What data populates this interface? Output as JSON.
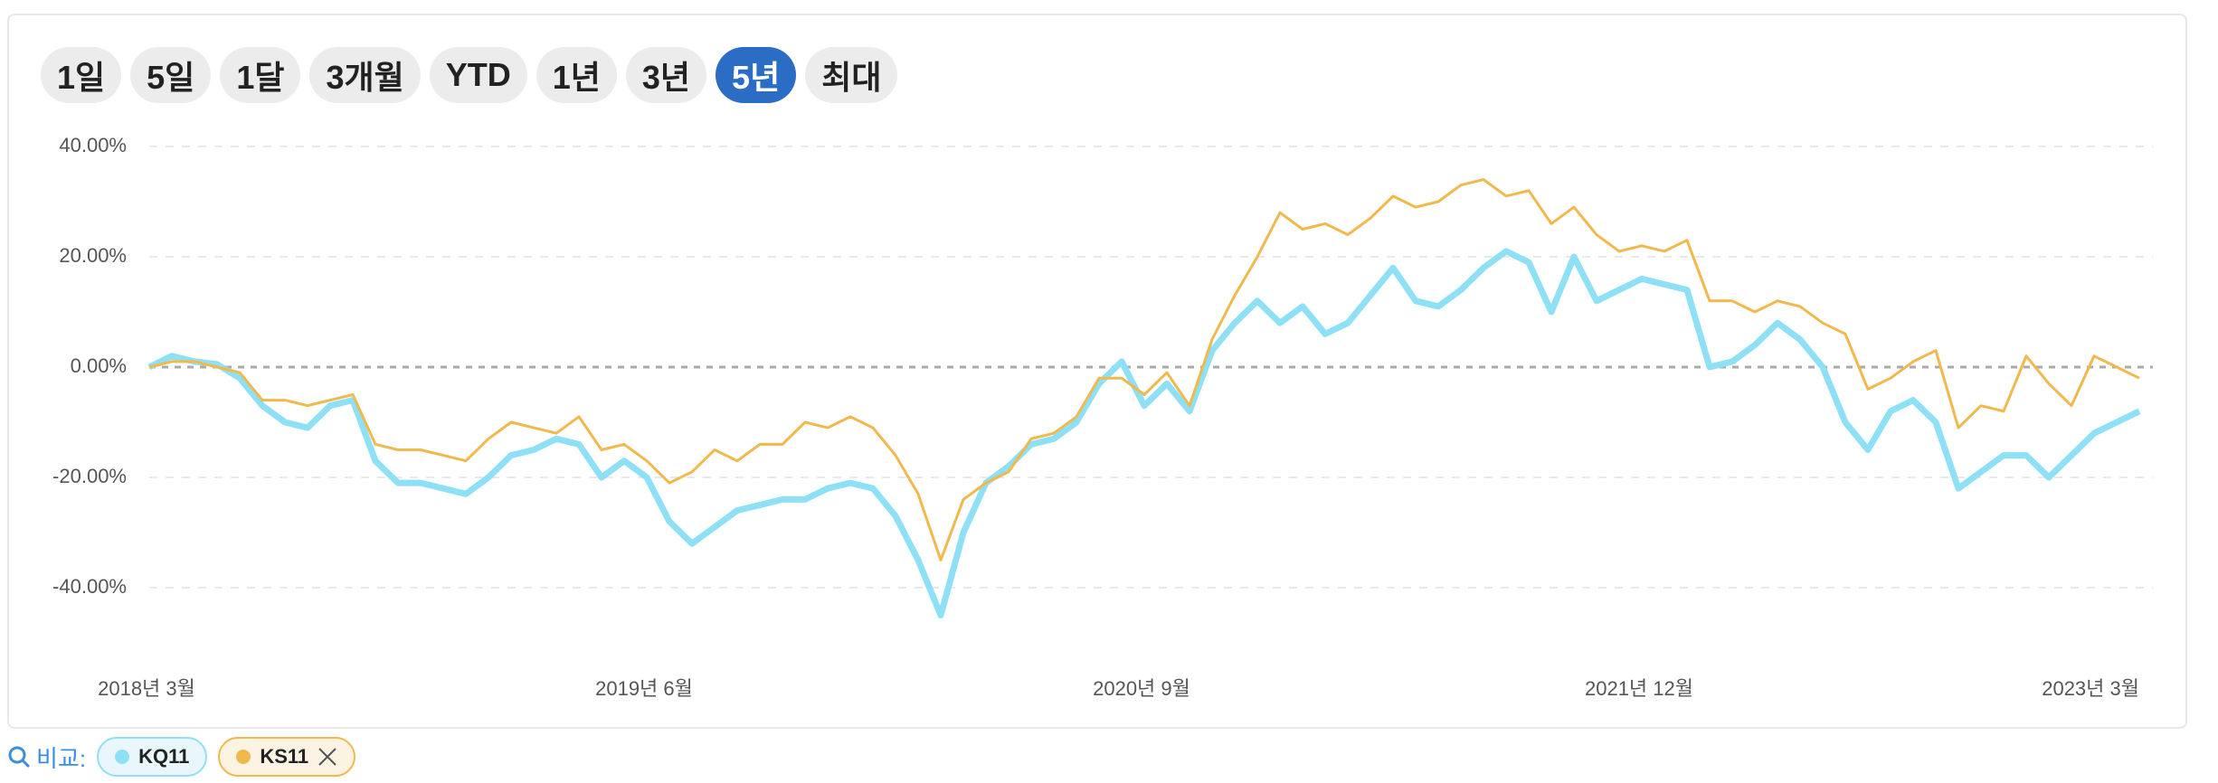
{
  "range_buttons": [
    "1일",
    "5일",
    "1달",
    "3개월",
    "YTD",
    "1년",
    "3년",
    "5년",
    "최대"
  ],
  "selected_range": "5년",
  "compare_label": "비교:",
  "chart_data": {
    "type": "line",
    "xlim": [
      0,
      88
    ],
    "xticks": [
      {
        "value": 0,
        "label": "2018년 3월"
      },
      {
        "value": 22,
        "label": "2019년 6월"
      },
      {
        "value": 44,
        "label": "2020년 9월"
      },
      {
        "value": 66,
        "label": "2021년 12월"
      },
      {
        "value": 88,
        "label": "2023년 3월"
      }
    ],
    "ylim": [
      -50,
      45
    ],
    "yticks": [
      {
        "value": 40,
        "label": "40.00%"
      },
      {
        "value": 20,
        "label": "20.00%"
      },
      {
        "value": 0,
        "label": "0.00%"
      },
      {
        "value": -20,
        "label": "-20.00%"
      },
      {
        "value": -40,
        "label": "-40.00%"
      }
    ],
    "grid": true,
    "series": [
      {
        "name": "KQ11",
        "color": "#8ee0f6",
        "values": [
          0,
          2,
          1,
          0.5,
          -2,
          -7,
          -10,
          -11,
          -7,
          -6,
          -17,
          -21,
          -21,
          -22,
          -23,
          -20,
          -16,
          -15,
          -13,
          -14,
          -20,
          -17,
          -20,
          -28,
          -32,
          -29,
          -26,
          -25,
          -24,
          -24,
          -22,
          -21,
          -22,
          -27,
          -35,
          -45,
          -30,
          -21,
          -18,
          -14,
          -13,
          -10,
          -3,
          1,
          -7,
          -3,
          -8,
          3,
          8,
          12,
          8,
          11,
          6,
          8,
          13,
          18,
          12,
          11,
          14,
          18,
          21,
          19,
          10,
          20,
          12,
          14,
          16,
          15,
          14,
          0,
          1,
          4,
          8,
          5,
          0,
          -10,
          -15,
          -8,
          -6,
          -10,
          -22,
          -19,
          -16,
          -16,
          -20,
          -16,
          -12,
          -10,
          -8
        ]
      },
      {
        "name": "KS11",
        "color": "#f0b94e",
        "values": [
          0,
          1,
          1,
          0,
          -1,
          -6,
          -6,
          -7,
          -6,
          -5,
          -14,
          -15,
          -15,
          -16,
          -17,
          -13,
          -10,
          -11,
          -12,
          -9,
          -15,
          -14,
          -17,
          -21,
          -19,
          -15,
          -17,
          -14,
          -14,
          -10,
          -11,
          -9,
          -11,
          -16,
          -23,
          -35,
          -24,
          -21,
          -19,
          -13,
          -12,
          -9,
          -2,
          -2,
          -5,
          -1,
          -7,
          5,
          13,
          20,
          28,
          25,
          26,
          24,
          27,
          31,
          29,
          30,
          33,
          34,
          31,
          32,
          26,
          29,
          24,
          21,
          22,
          21,
          23,
          12,
          12,
          10,
          12,
          11,
          8,
          6,
          -4,
          -2,
          1,
          3,
          -11,
          -7,
          -8,
          2,
          -3,
          -7,
          2,
          0,
          -2
        ]
      }
    ]
  }
}
